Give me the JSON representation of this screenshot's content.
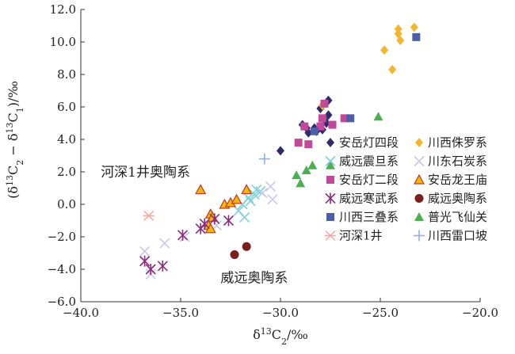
{
  "chart_data": {
    "type": "scatter",
    "xlabel_parts": [
      "δ",
      "13",
      "C",
      "2",
      "/‰"
    ],
    "ylabel_parts": [
      "(δ",
      "13",
      "C",
      "2",
      " − δ",
      "13",
      "C",
      "1",
      ")/‰"
    ],
    "xlim": [
      -40.0,
      -20.0
    ],
    "ylim": [
      -6.0,
      12.0
    ],
    "x_ticks": [
      "−40.0",
      "−35.0",
      "−30.0",
      "−25.0",
      "−20.0"
    ],
    "y_ticks": [
      "12.0",
      "10.0",
      "8.0",
      "6.0",
      "4.0",
      "2.0",
      "0.0",
      "−2.0",
      "−4.0",
      "−6.0"
    ],
    "x_tick_values": [
      -40,
      -35,
      -30,
      -25,
      -20
    ],
    "y_tick_values": [
      12,
      10,
      8,
      6,
      4,
      2,
      0,
      -2,
      -4,
      -6
    ],
    "annotations": [
      {
        "text": "河深1井奥陶系",
        "x": -39.0,
        "y": 1.7
      },
      {
        "text": "威远奥陶系",
        "x": -33.0,
        "y": -4.8
      }
    ],
    "series": [
      {
        "name": "安岳灯四段",
        "marker": "diamond",
        "color": "#2e2a6b",
        "points": [
          [
            -30.0,
            3.3
          ],
          [
            -28.9,
            4.9
          ],
          [
            -28.6,
            4.4
          ],
          [
            -28.3,
            4.7
          ],
          [
            -28.0,
            5.9
          ],
          [
            -27.6,
            6.4
          ],
          [
            -27.9,
            4.6
          ],
          [
            -27.6,
            5.5
          ],
          [
            -27.8,
            5.2
          ],
          [
            -28.2,
            4.5
          ],
          [
            -27.7,
            5.0
          ],
          [
            -28.7,
            4.7
          ]
        ]
      },
      {
        "name": "川西侏罗系",
        "marker": "diamond",
        "color": "#f4b630",
        "points": [
          [
            -24.1,
            10.8
          ],
          [
            -24.1,
            10.5
          ],
          [
            -23.3,
            10.9
          ],
          [
            -24.0,
            10.1
          ],
          [
            -24.8,
            9.5
          ],
          [
            -24.4,
            8.3
          ],
          [
            -27.9,
            6.1
          ]
        ]
      },
      {
        "name": "威远震旦系",
        "marker": "x",
        "color": "#7fcfd6",
        "points": [
          [
            -31.9,
            0.0
          ],
          [
            -31.6,
            0.4
          ],
          [
            -31.2,
            0.9
          ],
          [
            -31.3,
            0.6
          ],
          [
            -32.1,
            -0.4
          ],
          [
            -31.8,
            -0.8
          ],
          [
            -31.0,
            0.8
          ],
          [
            -31.5,
            0.2
          ]
        ]
      },
      {
        "name": "川东石炭系",
        "marker": "x",
        "color": "#c8c8e8",
        "points": [
          [
            -36.8,
            -2.9
          ],
          [
            -36.5,
            -4.3
          ],
          [
            -35.8,
            -2.4
          ],
          [
            -34.8,
            -2.0
          ],
          [
            -30.5,
            1.1
          ],
          [
            -30.4,
            0.3
          ],
          [
            -30.9,
            0.7
          ],
          [
            -33.2,
            -1.3
          ]
        ]
      },
      {
        "name": "安岳灯二段",
        "marker": "square",
        "color": "#c2499a",
        "points": [
          [
            -29.1,
            3.8
          ],
          [
            -28.6,
            3.7
          ],
          [
            -28.8,
            4.8
          ],
          [
            -27.9,
            5.3
          ],
          [
            -27.8,
            6.2
          ],
          [
            -27.4,
            4.9
          ],
          [
            -26.8,
            5.3
          ],
          [
            -28.0,
            4.8
          ]
        ]
      },
      {
        "name": "安岳龙王庙",
        "marker": "triangle",
        "color": "#f5b700",
        "edge": "#c0392b",
        "points": [
          [
            -34.0,
            0.9
          ],
          [
            -33.5,
            -0.6
          ],
          [
            -33.6,
            -1.3
          ],
          [
            -33.5,
            -1.5
          ],
          [
            -32.8,
            0.0
          ],
          [
            -32.5,
            0.1
          ],
          [
            -32.2,
            0.3
          ],
          [
            -31.7,
            0.9
          ],
          [
            -33.4,
            -0.8
          ]
        ]
      },
      {
        "name": "威远寒武系",
        "marker": "asterisk",
        "color": "#8b2d7a",
        "points": [
          [
            -36.8,
            -3.5
          ],
          [
            -36.5,
            -4.0
          ],
          [
            -35.9,
            -3.8
          ],
          [
            -34.9,
            -1.9
          ],
          [
            -34.0,
            -1.5
          ],
          [
            -33.3,
            -0.9
          ],
          [
            -32.6,
            -1.0
          ],
          [
            -33.8,
            -1.2
          ]
        ]
      },
      {
        "name": "威远奥陶系",
        "marker": "circle",
        "color": "#7a1f1f",
        "points": [
          [
            -32.3,
            -3.1
          ],
          [
            -31.7,
            -2.6
          ]
        ]
      },
      {
        "name": "川西三叠系",
        "marker": "square",
        "color": "#4a5fa8",
        "points": [
          [
            -23.2,
            10.3
          ],
          [
            -28.3,
            4.5
          ],
          [
            -26.5,
            5.3
          ]
        ]
      },
      {
        "name": "普光飞仙关",
        "marker": "triangle",
        "color": "#4caf50",
        "points": [
          [
            -25.1,
            5.4
          ],
          [
            -29.2,
            1.8
          ],
          [
            -29.0,
            1.3
          ],
          [
            -28.7,
            2.1
          ],
          [
            -28.4,
            2.4
          ],
          [
            -27.5,
            2.4
          ]
        ]
      },
      {
        "name": "河深1井",
        "marker": "star",
        "color": "#f4a6a0",
        "points": [
          [
            -36.6,
            -0.7
          ]
        ]
      },
      {
        "name": "川西雷口坡",
        "marker": "plus",
        "color": "#8fb3e0",
        "points": [
          [
            -30.8,
            2.8
          ]
        ]
      }
    ]
  }
}
